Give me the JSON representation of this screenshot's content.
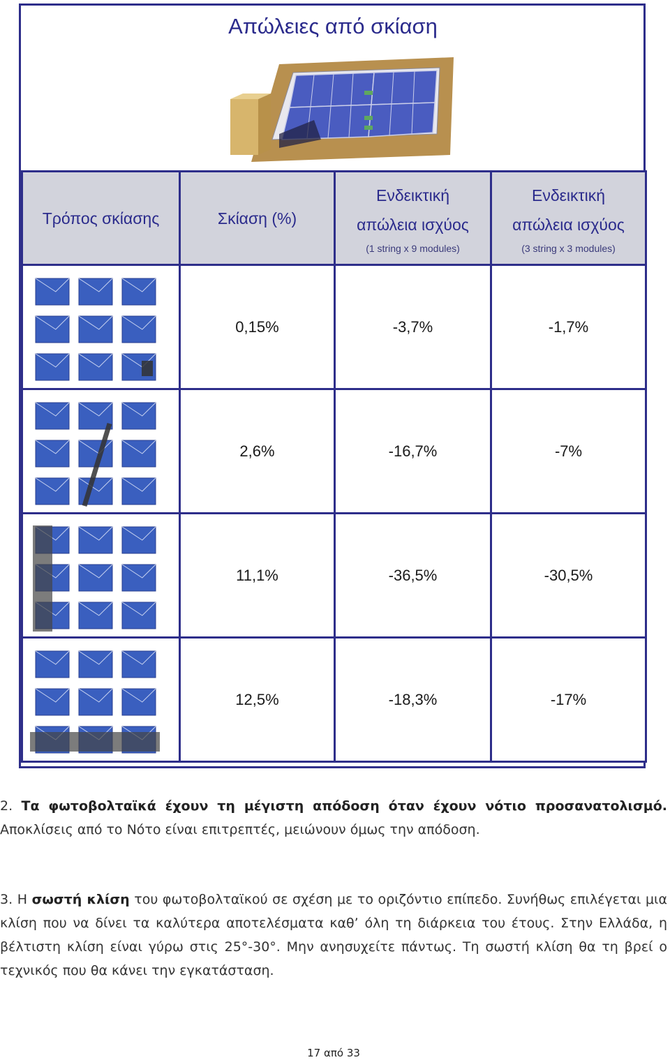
{
  "title": "Απώλειες από σκίαση",
  "table": {
    "headers": {
      "mode": "Τρόπος σκίασης",
      "shade": "Σκίαση (%)",
      "loss1": "Ενδεικτική απώλεια ισχύος",
      "loss1_sub": "(1 string x 9 modules)",
      "loss2": "Ενδεικτική απώλεια ισχύος",
      "loss2_sub": "(3 string x 3 modules)"
    },
    "rows": [
      {
        "shade": "0,15%",
        "loss1": "-3,7%",
        "loss2": "-1,7%"
      },
      {
        "shade": "2,6%",
        "loss1": "-16,7%",
        "loss2": "-7%"
      },
      {
        "shade": "11,1%",
        "loss1": "-36,5%",
        "loss2": "-30,5%"
      },
      {
        "shade": "12,5%",
        "loss1": "-18,3%",
        "loss2": "-17%"
      }
    ]
  },
  "paragraphs": {
    "p2_num": "2.",
    "p2_bold": "Τα φωτοβολταϊκά έχουν τη μέγιστη απόδοση όταν έχουν νότιο προσανατολισμό.",
    "p2_text": "Αποκλίσεις από το Νότο είναι επιτρεπτές, μειώνουν όμως την απόδοση.",
    "p3_num": "3.",
    "p3_pre": "Η",
    "p3_bold": "σωστή κλίση",
    "p3_text": "του φωτοβολταϊκού σε σχέση με το οριζόντιο επίπεδο. Συνήθως επιλέγεται μια κλίση που να δίνει τα καλύτερα αποτελέσματα καθ’ όλη τη διάρκεια του έτους. Στην Ελλάδα, η βέλτιστη κλίση είναι γύρω στις 25°-30°. Μην ανησυχείτε πάντως. Τη σωστή κλίση θα τη βρεί ο τεχνικός που θα κάνει την εγκατάσταση."
  },
  "footer": {
    "page": "17 από 33"
  },
  "colors": {
    "accent": "#2e2e8a",
    "panel": "#3a5fbf",
    "header_bg": "#d2d3dc"
  }
}
